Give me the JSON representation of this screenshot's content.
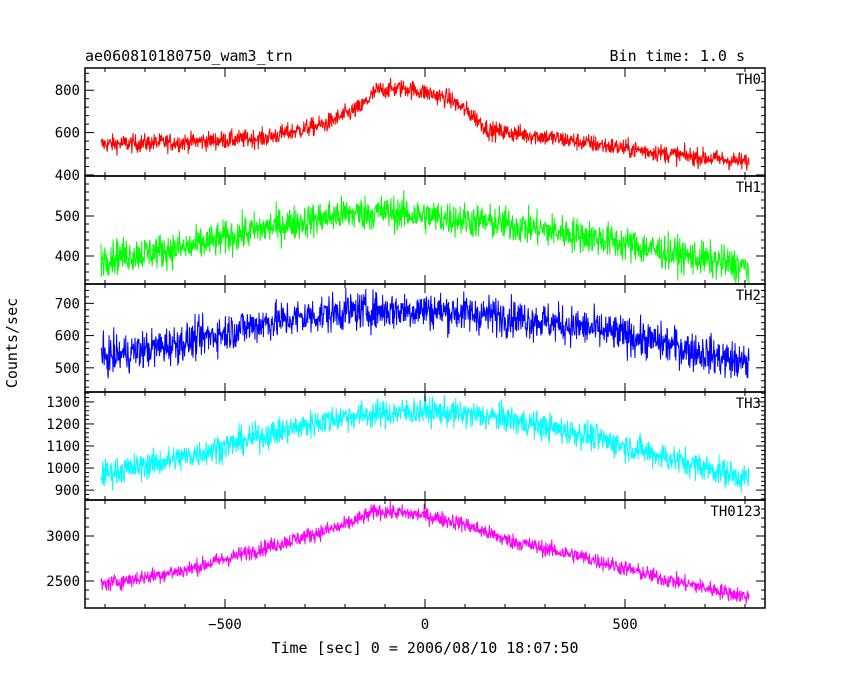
{
  "header": {
    "title": "ae060810180750_wam3_trn",
    "bin_time": "Bin time: 1.0 s"
  },
  "chart_data": {
    "type": "line",
    "xlabel": "Time [sec] 0 = 2006/08/10 18:07:50",
    "ylabel": "Counts/sec",
    "xlim": [
      -850,
      850
    ],
    "x_ticks": [
      -500,
      0,
      500
    ],
    "x_tick_labels": [
      "−500",
      "0",
      "500"
    ],
    "panels": [
      {
        "name": "TH0",
        "color": "#ff0000",
        "ylim": [
          395,
          905
        ],
        "y_ticks": [
          400,
          600,
          800
        ],
        "y_tick_labels": [
          "400",
          "600",
          "800"
        ],
        "noise": 22,
        "profile": [
          [
            -810,
            545
          ],
          [
            -600,
            555
          ],
          [
            -400,
            575
          ],
          [
            -250,
            640
          ],
          [
            -160,
            720
          ],
          [
            -120,
            800
          ],
          [
            -50,
            810
          ],
          [
            0,
            790
          ],
          [
            60,
            760
          ],
          [
            120,
            680
          ],
          [
            160,
            610
          ],
          [
            300,
            580
          ],
          [
            500,
            525
          ],
          [
            650,
            490
          ],
          [
            810,
            460
          ]
        ]
      },
      {
        "name": "TH1",
        "color": "#00ff00",
        "ylim": [
          330,
          600
        ],
        "y_ticks": [
          400,
          500
        ],
        "y_tick_labels": [
          "400",
          "500"
        ],
        "noise": 22,
        "profile": [
          [
            -810,
            395
          ],
          [
            -600,
            420
          ],
          [
            -400,
            470
          ],
          [
            -200,
            505
          ],
          [
            -100,
            510
          ],
          [
            0,
            500
          ],
          [
            200,
            480
          ],
          [
            400,
            450
          ],
          [
            600,
            410
          ],
          [
            810,
            370
          ]
        ]
      },
      {
        "name": "TH2",
        "color": "#0000ff",
        "ylim": [
          425,
          760
        ],
        "y_ticks": [
          500,
          600,
          700
        ],
        "y_tick_labels": [
          "500",
          "600",
          "700"
        ],
        "noise": 30,
        "profile": [
          [
            -810,
            530
          ],
          [
            -600,
            580
          ],
          [
            -400,
            640
          ],
          [
            -200,
            675
          ],
          [
            0,
            680
          ],
          [
            200,
            660
          ],
          [
            400,
            625
          ],
          [
            600,
            575
          ],
          [
            810,
            510
          ]
        ]
      },
      {
        "name": "TH3",
        "color": "#00ffff",
        "ylim": [
          855,
          1345
        ],
        "y_ticks": [
          900,
          1000,
          1100,
          1200,
          1300
        ],
        "y_tick_labels": [
          "900",
          "1000",
          "1100",
          "1200",
          "1300"
        ],
        "noise": 32,
        "profile": [
          [
            -810,
            970
          ],
          [
            -600,
            1050
          ],
          [
            -400,
            1150
          ],
          [
            -200,
            1235
          ],
          [
            0,
            1260
          ],
          [
            200,
            1225
          ],
          [
            400,
            1150
          ],
          [
            600,
            1050
          ],
          [
            810,
            950
          ]
        ]
      },
      {
        "name": "TH0123",
        "color": "#ff00ff",
        "ylim": [
          2200,
          3400
        ],
        "y_ticks": [
          2500,
          3000
        ],
        "y_tick_labels": [
          "2500",
          "3000"
        ],
        "noise": 45,
        "profile": [
          [
            -810,
            2460
          ],
          [
            -600,
            2620
          ],
          [
            -400,
            2870
          ],
          [
            -200,
            3120
          ],
          [
            -120,
            3280
          ],
          [
            0,
            3230
          ],
          [
            100,
            3130
          ],
          [
            200,
            2960
          ],
          [
            400,
            2760
          ],
          [
            600,
            2520
          ],
          [
            810,
            2320
          ]
        ]
      }
    ]
  }
}
